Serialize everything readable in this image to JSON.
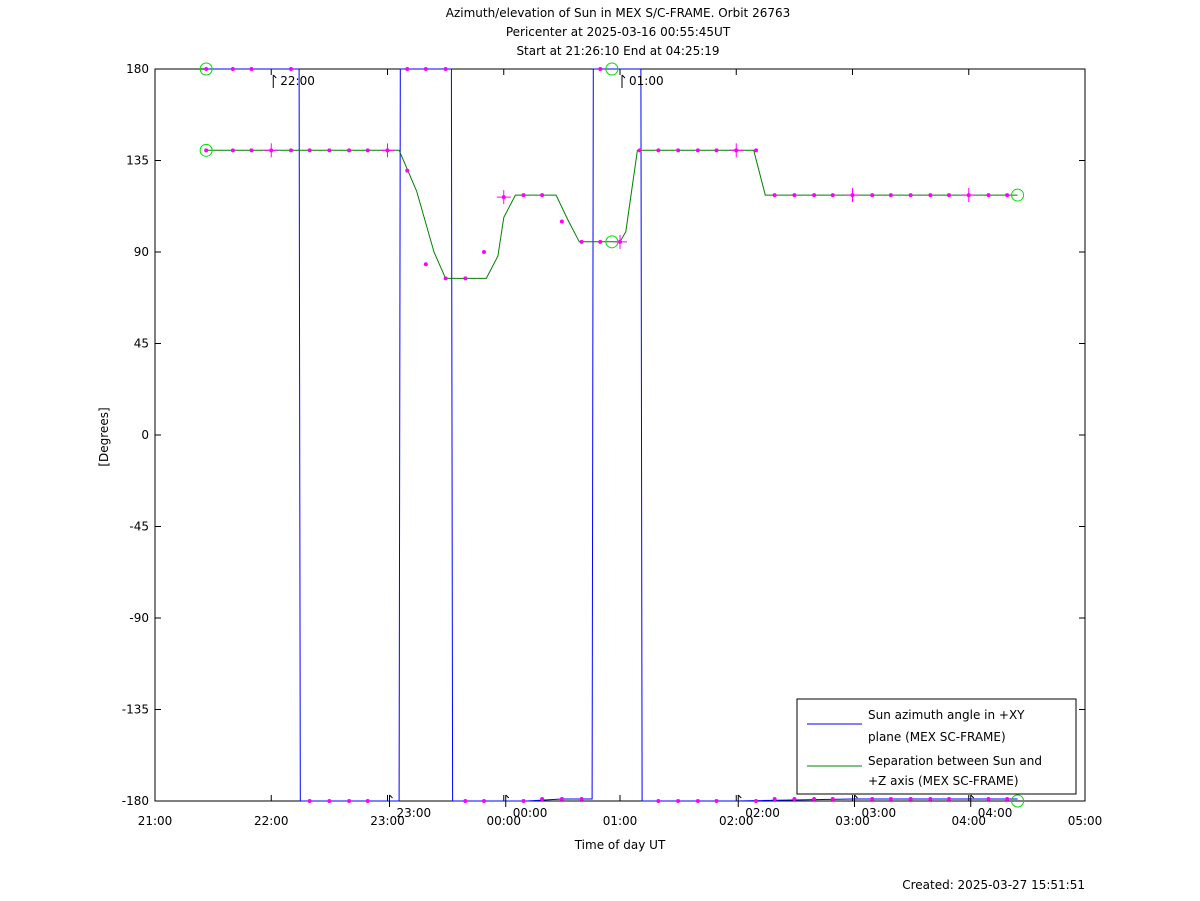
{
  "chart_data": {
    "type": "line",
    "title_lines": [
      "Azimuth/elevation of Sun in MEX S/C-FRAME.  Orbit 26763",
      "Pericenter at 2025-03-16 00:55:45UT",
      "Start at 21:26:10 End at 04:25:19"
    ],
    "xlabel": "Time of day UT",
    "ylabel": "[Degrees]",
    "x_unit": "hours since 21:00 UT",
    "xlim": [
      0,
      8
    ],
    "ylim": [
      -180,
      180
    ],
    "x_tick_labels": [
      "21:00",
      "22:00",
      "23:00",
      "00:00",
      "01:00",
      "02:00",
      "03:00",
      "04:00",
      "05:00"
    ],
    "y_ticks": [
      180,
      135,
      90,
      45,
      0,
      -45,
      -90,
      -135,
      -180
    ],
    "grid": false,
    "legend_position": "bottom-right",
    "legend": [
      {
        "line1": "Sun azimuth angle in +XY",
        "line2": "plane (MEX SC-FRAME)",
        "color": "#0000ff"
      },
      {
        "line1": "Separation between Sun and",
        "line2": "+Z axis (MEX SC-FRAME)",
        "color": "#008000"
      }
    ],
    "hour_markers": [
      {
        "label": "22:00",
        "x": 1.0,
        "y": 180
      },
      {
        "label": "23:00",
        "x": 2.0,
        "y": -180
      },
      {
        "label": "00:00",
        "x": 3.0,
        "y": -180
      },
      {
        "label": "01:00",
        "x": 4.0,
        "y": 180
      },
      {
        "label": "02:00",
        "x": 5.0,
        "y": -180
      },
      {
        "label": "03:00",
        "x": 6.0,
        "y": -180
      },
      {
        "label": "04:00",
        "x": 7.0,
        "y": -180
      }
    ],
    "series": [
      {
        "name": "Sun azimuth angle in +XY plane (MEX SC-FRAME)",
        "color": "#0000ff",
        "x": [
          0.44,
          1.24,
          1.25,
          2.1,
          2.11,
          2.55,
          2.56,
          3.2,
          3.5,
          3.76,
          3.77,
          4.18,
          4.19,
          5.0,
          6.0,
          7.0,
          7.42
        ],
        "y": [
          180,
          180,
          -180,
          -180,
          180,
          180,
          -180,
          -180,
          -179,
          -179,
          180,
          180,
          -180,
          -180,
          -179,
          -179,
          -179
        ]
      },
      {
        "name": "Separation between Sun and +Z axis (MEX SC-FRAME)",
        "color": "#008000",
        "x": [
          0.44,
          2.1,
          2.25,
          2.4,
          2.5,
          2.85,
          2.95,
          3.0,
          3.1,
          3.45,
          3.55,
          3.65,
          4.0,
          4.05,
          4.1,
          4.15,
          4.3,
          5.15,
          5.25,
          7.42
        ],
        "y": [
          140,
          140,
          120,
          90,
          77,
          77,
          88,
          107,
          118,
          118,
          106,
          95,
          95,
          100,
          120,
          140,
          140,
          140,
          118,
          118
        ]
      }
    ],
    "markers": {
      "azimuth_dots": {
        "x": [
          0.44,
          0.67,
          0.83,
          1.17,
          1.33,
          1.5,
          1.67,
          1.83,
          2.17,
          2.33,
          2.5,
          2.67,
          2.83,
          3.17,
          3.33,
          3.5,
          3.67,
          3.83,
          4.33,
          4.5,
          4.67,
          4.83,
          5.17,
          5.33,
          5.5,
          5.67,
          5.83,
          6.17,
          6.33,
          6.5,
          6.67,
          6.83,
          7.17,
          7.33
        ],
        "y": [
          180,
          180,
          180,
          180,
          -180,
          -180,
          -180,
          -180,
          180,
          180,
          180,
          -180,
          -180,
          -180,
          -179,
          -179,
          -179,
          180,
          -180,
          -180,
          -180,
          -180,
          -180,
          -179,
          -179,
          -179,
          -179,
          -179,
          -179,
          -179,
          -179,
          -179,
          -179,
          -179
        ]
      },
      "separation_dots": {
        "x": [
          0.44,
          0.67,
          0.83,
          1.0,
          1.17,
          1.33,
          1.5,
          1.67,
          1.83,
          2.0,
          2.17,
          2.33,
          2.5,
          2.67,
          2.83,
          3.0,
          3.17,
          3.33,
          3.5,
          3.67,
          3.83,
          4.0,
          4.17,
          4.33,
          4.5,
          4.67,
          4.83,
          5.0,
          5.17,
          5.33,
          5.5,
          5.67,
          5.83,
          6.0,
          6.17,
          6.33,
          6.5,
          6.67,
          6.83,
          7.0,
          7.17,
          7.33
        ],
        "y": [
          140,
          140,
          140,
          140,
          140,
          140,
          140,
          140,
          140,
          140,
          130,
          84,
          77,
          77,
          90,
          117,
          118,
          118,
          105,
          95,
          95,
          95,
          140,
          140,
          140,
          140,
          140,
          140,
          140,
          118,
          118,
          118,
          118,
          118,
          118,
          118,
          118,
          118,
          118,
          118,
          118,
          118
        ]
      },
      "start_end_circles": [
        {
          "x": 0.44,
          "y": 180
        },
        {
          "x": 0.44,
          "y": 140
        },
        {
          "x": 3.93,
          "y": 180
        },
        {
          "x": 3.93,
          "y": 95
        },
        {
          "x": 7.42,
          "y": -180
        },
        {
          "x": 7.42,
          "y": 118
        }
      ]
    }
  },
  "footer": {
    "created": "Created: 2025-03-27 15:51:51"
  }
}
